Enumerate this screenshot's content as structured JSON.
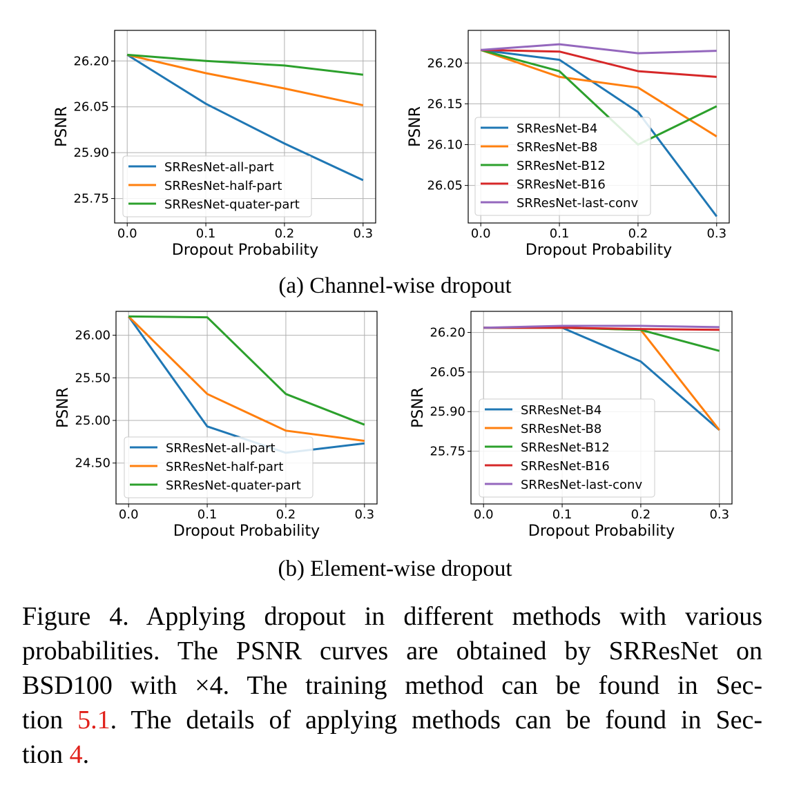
{
  "figure": {
    "subcaption_a": "(a) Channel-wise dropout",
    "subcaption_b": "(b) Element-wise dropout",
    "caption": {
      "line1": "Figure 4.  Applying dropout in different methods with various",
      "line2": "probabilities.  The PSNR curves are obtained by SRResNet on",
      "line3": "BSD100 with ×4.  The training method can be found in Sec-",
      "line4_pre": "tion ",
      "line4_ref": "5.1",
      "line4_post": ".  The details of applying methods can be found in Sec-",
      "line5_pre": "tion ",
      "line5_ref": "4",
      "line5_post": "."
    }
  },
  "colors": {
    "blue": "#1f77b4",
    "orange": "#ff7f0e",
    "green": "#2ca02c",
    "red": "#d62728",
    "purple": "#9467bd",
    "ref": "#e0201a"
  },
  "chart_data": [
    {
      "id": "a-left",
      "type": "line",
      "x": [
        0.0,
        0.1,
        0.2,
        0.3
      ],
      "xticks": [
        "0.0",
        "0.1",
        "0.2",
        "0.3"
      ],
      "yticks": [
        25.75,
        25.9,
        26.05,
        26.2
      ],
      "ytick_labels": [
        "25.75",
        "25.90",
        "26.05",
        "26.20"
      ],
      "xlim": [
        -0.016,
        0.316
      ],
      "ylim": [
        25.67,
        26.3
      ],
      "xlabel": "Dropout Probability",
      "ylabel": "PSNR",
      "legend": "lower-left",
      "grid": true,
      "series": [
        {
          "name": "SRResNet-all-part",
          "color": "#1f77b4",
          "values": [
            26.22,
            26.06,
            25.93,
            25.81
          ]
        },
        {
          "name": "SRResNet-half-part",
          "color": "#ff7f0e",
          "values": [
            26.22,
            26.16,
            26.11,
            26.055
          ]
        },
        {
          "name": "SRResNet-quater-part",
          "color": "#2ca02c",
          "values": [
            26.22,
            26.2,
            26.185,
            26.155
          ]
        }
      ]
    },
    {
      "id": "a-right",
      "type": "line",
      "x": [
        0.0,
        0.1,
        0.2,
        0.3
      ],
      "xticks": [
        "0.0",
        "0.1",
        "0.2",
        "0.3"
      ],
      "yticks": [
        26.05,
        26.1,
        26.15,
        26.2
      ],
      "ytick_labels": [
        "26.05",
        "26.10",
        "26.15",
        "26.20"
      ],
      "xlim": [
        -0.016,
        0.316
      ],
      "ylim": [
        26.004,
        26.24
      ],
      "xlabel": "Dropout Probability",
      "ylabel": "PSNR",
      "legend": "lower-left",
      "grid": true,
      "series": [
        {
          "name": "SRResNet-B4",
          "color": "#1f77b4",
          "values": [
            26.216,
            26.204,
            26.14,
            26.012
          ]
        },
        {
          "name": "SRResNet-B8",
          "color": "#ff7f0e",
          "values": [
            26.216,
            26.183,
            26.17,
            26.11
          ]
        },
        {
          "name": "SRResNet-B12",
          "color": "#2ca02c",
          "values": [
            26.216,
            26.19,
            26.1,
            26.147
          ]
        },
        {
          "name": "SRResNet-B16",
          "color": "#d62728",
          "values": [
            26.216,
            26.214,
            26.19,
            26.183
          ]
        },
        {
          "name": "SRResNet-last-conv",
          "color": "#9467bd",
          "values": [
            26.216,
            26.223,
            26.212,
            26.215
          ]
        }
      ]
    },
    {
      "id": "b-left",
      "type": "line",
      "x": [
        0.0,
        0.1,
        0.2,
        0.3
      ],
      "xticks": [
        "0.0",
        "0.1",
        "0.2",
        "0.3"
      ],
      "yticks": [
        24.5,
        25.0,
        25.5,
        26.0
      ],
      "ytick_labels": [
        "24.50",
        "25.00",
        "25.50",
        "26.00"
      ],
      "xlim": [
        -0.016,
        0.316
      ],
      "ylim": [
        24.02,
        26.28
      ],
      "xlabel": "Dropout Probability",
      "ylabel": "PSNR",
      "legend": "lower-left",
      "grid": true,
      "series": [
        {
          "name": "SRResNet-all-part",
          "color": "#1f77b4",
          "values": [
            26.22,
            24.93,
            24.62,
            24.73
          ]
        },
        {
          "name": "SRResNet-half-part",
          "color": "#ff7f0e",
          "values": [
            26.22,
            25.31,
            24.88,
            24.76
          ]
        },
        {
          "name": "SRResNet-quater-part",
          "color": "#2ca02c",
          "values": [
            26.22,
            26.21,
            25.31,
            24.95
          ]
        }
      ]
    },
    {
      "id": "b-right",
      "type": "line",
      "x": [
        0.0,
        0.1,
        0.2,
        0.3
      ],
      "xticks": [
        "0.0",
        "0.1",
        "0.2",
        "0.3"
      ],
      "yticks": [
        25.75,
        25.9,
        26.05,
        26.2
      ],
      "ytick_labels": [
        "25.75",
        "25.90",
        "26.05",
        "26.20"
      ],
      "xlim": [
        -0.016,
        0.316
      ],
      "ylim": [
        25.55,
        26.28
      ],
      "xlabel": "Dropout Probability",
      "ylabel": "PSNR",
      "legend": "lower-left",
      "grid": true,
      "series": [
        {
          "name": "SRResNet-B4",
          "color": "#1f77b4",
          "values": [
            26.218,
            26.218,
            26.09,
            25.83
          ]
        },
        {
          "name": "SRResNet-B8",
          "color": "#ff7f0e",
          "values": [
            26.218,
            26.218,
            26.21,
            25.83
          ]
        },
        {
          "name": "SRResNet-B12",
          "color": "#2ca02c",
          "values": [
            26.218,
            26.218,
            26.21,
            26.13
          ]
        },
        {
          "name": "SRResNet-B16",
          "color": "#d62728",
          "values": [
            26.218,
            26.218,
            26.213,
            26.21
          ]
        },
        {
          "name": "SRResNet-last-conv",
          "color": "#9467bd",
          "values": [
            26.218,
            26.225,
            26.225,
            26.22
          ]
        }
      ]
    }
  ]
}
